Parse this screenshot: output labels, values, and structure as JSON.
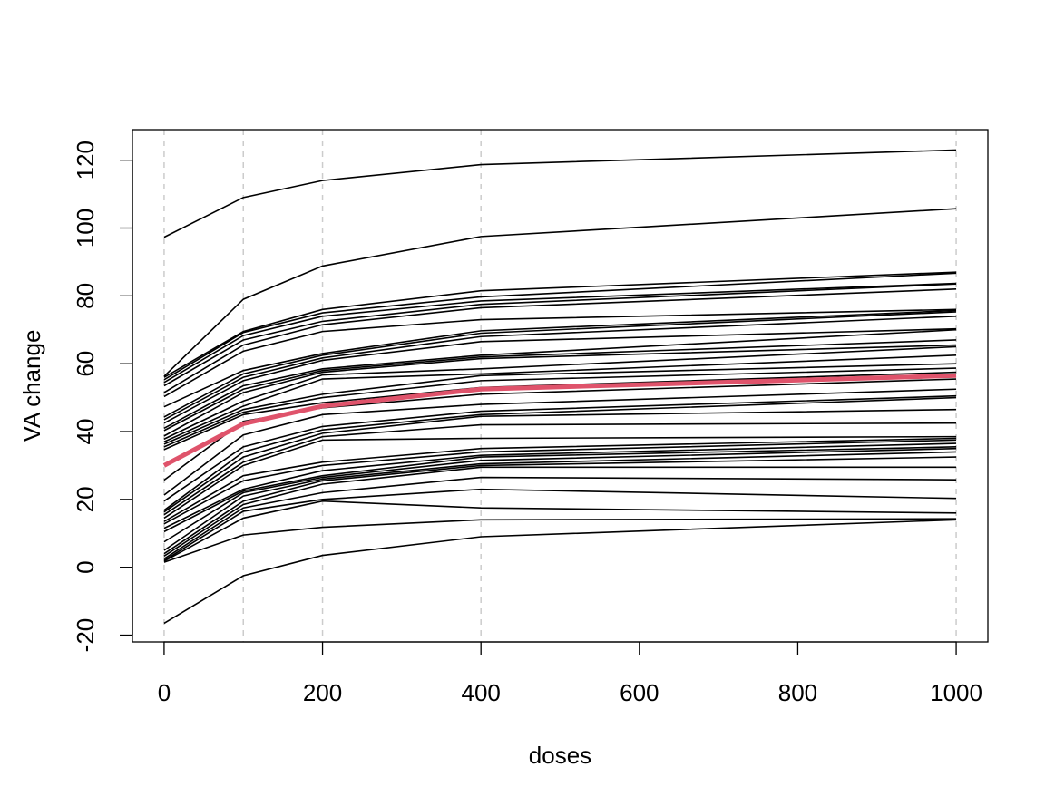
{
  "chart_data": {
    "type": "line",
    "title": "",
    "xlabel": "doses",
    "ylabel": "VA change",
    "xlim": [
      -40,
      1040
    ],
    "ylim": [
      -22,
      129
    ],
    "x": [
      0,
      100,
      200,
      400,
      1000
    ],
    "x_ticks": [
      0,
      200,
      400,
      600,
      800,
      1000
    ],
    "y_ticks": [
      -20,
      0,
      20,
      40,
      60,
      80,
      100,
      120
    ],
    "x_tick_labels": [
      "0",
      "200",
      "400",
      "600",
      "800",
      "1000"
    ],
    "y_tick_labels": [
      "-20",
      "0",
      "20",
      "40",
      "60",
      "80",
      "100",
      "120"
    ],
    "vertical_reference_lines": [
      0,
      100,
      200,
      400,
      1000
    ],
    "colors": {
      "individual": "#000000",
      "mean": "#df536b",
      "reference": "#cccccc"
    },
    "series": [
      {
        "values": [
          97.3,
          109.0,
          114.0,
          118.7,
          123.0
        ]
      },
      {
        "values": [
          56.3,
          79.0,
          88.8,
          97.5,
          105.7
        ]
      },
      {
        "values": [
          56.0,
          69.5,
          76.0,
          81.5,
          87.0
        ]
      },
      {
        "values": [
          55.3,
          69.2,
          75.0,
          79.7,
          86.7
        ]
      },
      {
        "values": [
          54.5,
          68.3,
          74.0,
          78.5,
          83.7
        ]
      },
      {
        "values": [
          53.5,
          67.0,
          72.5,
          77.5,
          83.5
        ]
      },
      {
        "values": [
          51.5,
          65.5,
          71.5,
          76.5,
          82.0
        ]
      },
      {
        "values": [
          50.3,
          63.7,
          69.5,
          73.0,
          76.0
        ]
      },
      {
        "values": [
          47.3,
          58.0,
          63.0,
          69.7,
          75.7
        ]
      },
      {
        "values": [
          44.3,
          57.0,
          62.5,
          69.0,
          75.3
        ]
      },
      {
        "values": [
          43.5,
          56.0,
          61.7,
          68.0,
          74.0
        ]
      },
      {
        "values": [
          42.5,
          55.0,
          61.0,
          66.5,
          70.3
        ]
      },
      {
        "values": [
          41.0,
          53.5,
          58.5,
          62.5,
          70.0
        ]
      },
      {
        "values": [
          40.3,
          52.5,
          58.0,
          62.0,
          67.0
        ]
      },
      {
        "values": [
          38.7,
          51.5,
          57.5,
          61.5,
          65.5
        ]
      },
      {
        "values": [
          37.8,
          49.0,
          56.7,
          58.5,
          65.0
        ]
      },
      {
        "values": [
          37.0,
          47.5,
          55.5,
          57.0,
          62.5
        ]
      },
      {
        "values": [
          36.3,
          46.5,
          51.0,
          56.5,
          60.0
        ]
      },
      {
        "values": [
          35.5,
          45.7,
          50.0,
          55.0,
          58.7
        ]
      },
      {
        "values": [
          34.7,
          45.0,
          48.5,
          53.0,
          57.5
        ]
      },
      {
        "values": [
          25.7,
          43.0,
          47.0,
          51.0,
          55.5
        ]
      },
      {
        "values": [
          21.3,
          39.0,
          45.0,
          48.0,
          52.5
        ]
      },
      {
        "values": [
          19.5,
          35.5,
          41.5,
          46.0,
          50.5
        ]
      },
      {
        "values": [
          16.8,
          34.0,
          40.5,
          45.0,
          50.0
        ]
      },
      {
        "values": [
          16.3,
          32.5,
          39.5,
          44.5,
          46.5
        ]
      },
      {
        "values": [
          15.5,
          31.0,
          38.5,
          42.0,
          42.5
        ]
      },
      {
        "values": [
          14.5,
          30.0,
          37.5,
          38.0,
          38.5
        ]
      },
      {
        "values": [
          13.5,
          27.0,
          31.0,
          35.0,
          38.0
        ]
      },
      {
        "values": [
          12.8,
          25.5,
          30.0,
          34.0,
          37.5
        ]
      },
      {
        "values": [
          11.5,
          23.0,
          28.5,
          33.0,
          36.5
        ]
      },
      {
        "values": [
          10.5,
          22.5,
          27.0,
          32.5,
          35.5
        ]
      },
      {
        "values": [
          7.5,
          22.0,
          26.5,
          31.5,
          35.0
        ]
      },
      {
        "values": [
          5.0,
          21.0,
          26.0,
          30.5,
          34.0
        ]
      },
      {
        "values": [
          4.0,
          19.5,
          25.5,
          30.0,
          32.5
        ]
      },
      {
        "values": [
          3.3,
          18.5,
          24.5,
          29.5,
          29.5
        ]
      },
      {
        "values": [
          2.5,
          17.5,
          22.0,
          26.5,
          25.8
        ]
      },
      {
        "values": [
          2.0,
          16.5,
          20.0,
          23.0,
          20.3
        ]
      },
      {
        "values": [
          1.8,
          14.5,
          19.5,
          17.5,
          16.0
        ]
      },
      {
        "values": [
          1.5,
          9.5,
          11.8,
          14.0,
          14.3
        ]
      },
      {
        "values": [
          -16.5,
          -2.5,
          3.5,
          9.0,
          14.0
        ]
      }
    ],
    "mean_series": {
      "values": [
        30.0,
        42.3,
        47.5,
        52.5,
        56.5
      ]
    }
  }
}
